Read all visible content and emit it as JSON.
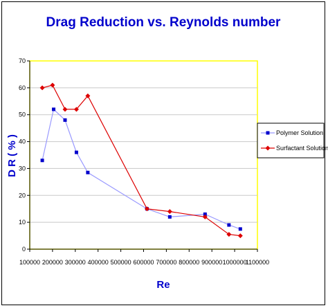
{
  "chart_data": {
    "type": "line",
    "title": "Drag Reduction vs. Reynolds number",
    "xlabel": "Re",
    "ylabel": "D R ( % )",
    "xlim": [
      100000,
      1100000
    ],
    "ylim": [
      0,
      70
    ],
    "x_ticks": [
      "100000",
      "200000",
      "300000",
      "400000",
      "500000",
      "600000",
      "700000",
      "800000",
      "900000",
      "1000000",
      "1100000"
    ],
    "y_ticks": [
      "0",
      "10",
      "20",
      "30",
      "40",
      "50",
      "60",
      "70"
    ],
    "grid": true,
    "legend_position": "right",
    "series": [
      {
        "name": "Polymer Solution",
        "color": "#0000cc",
        "line_color": "#9999ff",
        "marker": "square",
        "x": [
          155000,
          205000,
          255000,
          305000,
          355000,
          615000,
          715000,
          870000,
          975000,
          1025000
        ],
        "y": [
          33,
          52,
          48,
          36,
          28.5,
          15,
          12,
          13,
          9,
          7.5
        ]
      },
      {
        "name": "Surfactant Solution",
        "color": "#dd0000",
        "line_color": "#dd0000",
        "marker": "diamond",
        "x": [
          155000,
          200000,
          255000,
          305000,
          355000,
          615000,
          715000,
          870000,
          975000,
          1025000
        ],
        "y": [
          60,
          61,
          52,
          52,
          57,
          15,
          14,
          12,
          5.5,
          5
        ]
      }
    ]
  }
}
